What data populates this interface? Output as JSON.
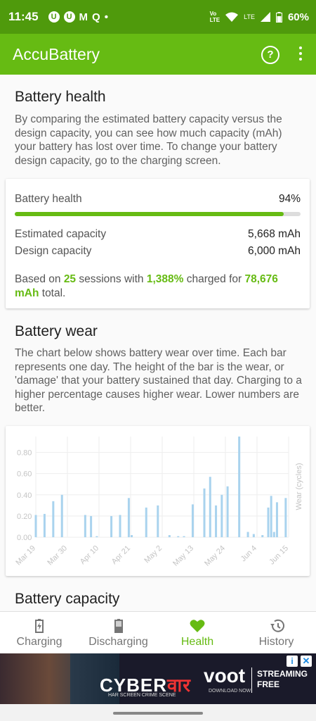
{
  "status": {
    "time": "11:45",
    "battery": "60%",
    "network": "LTE"
  },
  "app": {
    "title": "AccuBattery"
  },
  "health_section": {
    "title": "Battery health",
    "description": "By comparing the estimated battery capacity versus the design capacity, you can see how much capacity (mAh) your battery has lost over time. To change your battery design capacity, go to the charging screen.",
    "health_label": "Battery health",
    "health_value": "94%",
    "health_fraction": 0.94,
    "estimated_label": "Estimated capacity",
    "estimated_value": "5,668 mAh",
    "design_label": "Design capacity",
    "design_value": "6,000 mAh",
    "summary_1": "Based on ",
    "sessions": "25",
    "summary_2": " sessions with ",
    "charged_percent": "1,388%",
    "summary_3": " charged for ",
    "charged_total": "78,676 mAh",
    "summary_4": " total."
  },
  "wear_section": {
    "title": "Battery wear",
    "description": "The chart below shows battery wear over time. Each bar represents one day. The height of the bar is the wear, or 'damage' that your battery sustained that day. Charging to a higher percentage causes higher wear. Lower numbers are better."
  },
  "chart_data": {
    "type": "bar",
    "ylabel": "Wear (cycles)",
    "ylim": [
      0,
      0.95
    ],
    "y_ticks": [
      "0.00",
      "0.20",
      "0.40",
      "0.60",
      "0.80"
    ],
    "x_tick_labels": [
      "Mar 19",
      "Mar 30",
      "Apr 10",
      "Apr 21",
      "May 2",
      "May 13",
      "May 24",
      "Jun 4",
      "Jun 15"
    ],
    "start_day": 0,
    "total_days": 88,
    "bars": [
      {
        "day": 0,
        "value": 0.21
      },
      {
        "day": 3,
        "value": 0.22
      },
      {
        "day": 6,
        "value": 0.34
      },
      {
        "day": 9,
        "value": 0.4
      },
      {
        "day": 17,
        "value": 0.21
      },
      {
        "day": 19,
        "value": 0.2
      },
      {
        "day": 21,
        "value": 0.01
      },
      {
        "day": 26,
        "value": 0.2
      },
      {
        "day": 29,
        "value": 0.21
      },
      {
        "day": 32,
        "value": 0.37
      },
      {
        "day": 33,
        "value": 0.02
      },
      {
        "day": 38,
        "value": 0.28
      },
      {
        "day": 42,
        "value": 0.3
      },
      {
        "day": 46,
        "value": 0.02
      },
      {
        "day": 49,
        "value": 0.01
      },
      {
        "day": 51,
        "value": 0.01
      },
      {
        "day": 54,
        "value": 0.31
      },
      {
        "day": 58,
        "value": 0.46
      },
      {
        "day": 60,
        "value": 0.57
      },
      {
        "day": 62,
        "value": 0.3
      },
      {
        "day": 64,
        "value": 0.4
      },
      {
        "day": 66,
        "value": 0.48
      },
      {
        "day": 70,
        "value": 0.95
      },
      {
        "day": 73,
        "value": 0.05
      },
      {
        "day": 75,
        "value": 0.03
      },
      {
        "day": 78,
        "value": 0.02
      },
      {
        "day": 80,
        "value": 0.28
      },
      {
        "day": 81,
        "value": 0.39
      },
      {
        "day": 82,
        "value": 0.05
      },
      {
        "day": 83,
        "value": 0.33
      },
      {
        "day": 86,
        "value": 0.37
      }
    ]
  },
  "capacity_section": {
    "title": "Battery capacity"
  },
  "nav": [
    {
      "label": "Charging",
      "icon": "battery-charging-icon"
    },
    {
      "label": "Discharging",
      "icon": "battery-discharging-icon"
    },
    {
      "label": "Health",
      "icon": "heart-icon"
    },
    {
      "label": "History",
      "icon": "history-icon"
    }
  ],
  "ad": {
    "brand": "CYBER",
    "brand_suffix": "वार",
    "tagline": "HAR SCREEN CRIME SCENE",
    "provider": "voot",
    "provider_sub": "DOWNLOAD NOW",
    "streaming": "STREAMING",
    "free": "FREE"
  },
  "colors": {
    "accent": "#66bb13",
    "statusbar": "#4f9a0c",
    "bar": "#a9d3ee"
  }
}
